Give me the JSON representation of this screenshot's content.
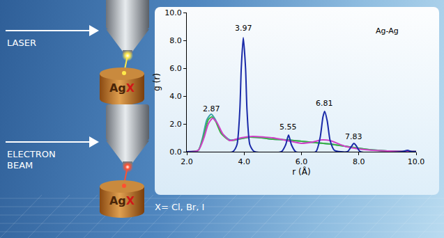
{
  "chart_data": {
    "type": "line",
    "x_label": "r (Å)",
    "y_label": "g (r)",
    "xlim": [
      2,
      10
    ],
    "ylim": [
      0,
      10
    ],
    "xticks": [
      {
        "value": 2,
        "label": "2.0"
      },
      {
        "value": 4,
        "label": "4.0"
      },
      {
        "value": 6,
        "label": "6.0"
      },
      {
        "value": 8,
        "label": "8.0"
      },
      {
        "value": 10,
        "label": "10.0"
      }
    ],
    "yticks": [
      {
        "value": 0,
        "label": "0.0"
      },
      {
        "value": 2,
        "label": "2.0"
      },
      {
        "value": 4,
        "label": "4.0"
      },
      {
        "value": 6,
        "label": "6.0"
      },
      {
        "value": 8,
        "label": "8.0"
      },
      {
        "value": 10,
        "label": "10.0"
      }
    ],
    "grid": false,
    "annotations": [
      {
        "text": "Ag-Ag",
        "x": 9.0,
        "y": 8.7
      },
      {
        "text": "2.87",
        "x": 2.87,
        "y": 3.1
      },
      {
        "text": "3.97",
        "x": 3.97,
        "y": 8.9
      },
      {
        "text": "5.55",
        "x": 5.55,
        "y": 1.8
      },
      {
        "text": "6.81",
        "x": 6.81,
        "y": 3.5
      },
      {
        "text": "7.83",
        "x": 7.83,
        "y": 1.1
      }
    ],
    "series": [
      {
        "color": "#3aa0a8",
        "x": [
          2.0,
          2.4,
          2.55,
          2.7,
          2.85,
          3.0,
          3.2,
          3.5,
          3.8,
          4.2,
          4.6,
          5.0,
          5.5,
          6.0,
          6.5,
          7.0,
          7.5,
          8.0,
          8.5,
          9.0,
          10.0
        ],
        "values": [
          0,
          0.1,
          1.0,
          2.3,
          2.7,
          2.3,
          1.4,
          0.85,
          0.9,
          1.05,
          1.0,
          0.9,
          0.85,
          0.75,
          0.65,
          0.55,
          0.4,
          0.25,
          0.12,
          0.05,
          0.02
        ]
      },
      {
        "color": "#3cb043",
        "x": [
          2.0,
          2.4,
          2.6,
          2.75,
          2.87,
          3.0,
          3.2,
          3.5,
          3.8,
          4.2,
          4.6,
          5.0,
          5.5,
          6.0,
          6.5,
          7.0,
          7.5,
          8.0,
          8.5,
          9.0,
          10.0
        ],
        "values": [
          0,
          0.1,
          1.2,
          2.3,
          2.5,
          2.2,
          1.3,
          0.8,
          0.9,
          1.05,
          1.0,
          0.9,
          0.85,
          0.75,
          0.65,
          0.55,
          0.4,
          0.25,
          0.12,
          0.05,
          0.02
        ]
      },
      {
        "color": "#d040c8",
        "x": [
          2.0,
          2.4,
          2.6,
          2.75,
          2.9,
          3.05,
          3.25,
          3.5,
          3.9,
          4.3,
          4.7,
          5.0,
          5.5,
          6.0,
          6.4,
          6.7,
          7.0,
          7.5,
          8.0,
          8.5,
          9.0,
          10.0
        ],
        "values": [
          0,
          0.1,
          1.0,
          2.0,
          2.4,
          2.1,
          1.3,
          0.8,
          1.0,
          1.1,
          1.05,
          1.0,
          0.8,
          0.6,
          0.7,
          0.85,
          0.8,
          0.4,
          0.2,
          0.1,
          0.05,
          0.02
        ]
      },
      {
        "color": "#1a2aa8",
        "x": [
          2.0,
          3.6,
          3.75,
          3.85,
          3.9,
          3.97,
          4.05,
          4.1,
          4.2,
          4.35,
          5.3,
          5.45,
          5.55,
          5.65,
          5.8,
          6.5,
          6.65,
          6.75,
          6.81,
          6.9,
          7.0,
          7.15,
          7.6,
          7.75,
          7.83,
          7.92,
          8.05,
          9.5,
          9.7,
          9.85,
          10.0
        ],
        "values": [
          0,
          0,
          0.5,
          3.0,
          6.0,
          8.2,
          6.0,
          3.0,
          0.5,
          0.02,
          0,
          0.5,
          1.2,
          0.5,
          0,
          0,
          1.0,
          2.5,
          2.9,
          2.2,
          0.8,
          0.1,
          0,
          0.4,
          0.6,
          0.4,
          0,
          0,
          0.1,
          0,
          0
        ]
      }
    ]
  },
  "illustration": {
    "sources": [
      {
        "label_lines": [
          "LASER"
        ],
        "spot_color": "#ffe94a"
      },
      {
        "label_lines": [
          "ELECTRON",
          "BEAM"
        ],
        "spot_color": "#ff5030"
      }
    ],
    "sample": {
      "metal": "Ag",
      "halide": "X"
    },
    "caption": "X= Cl, Br, I"
  }
}
